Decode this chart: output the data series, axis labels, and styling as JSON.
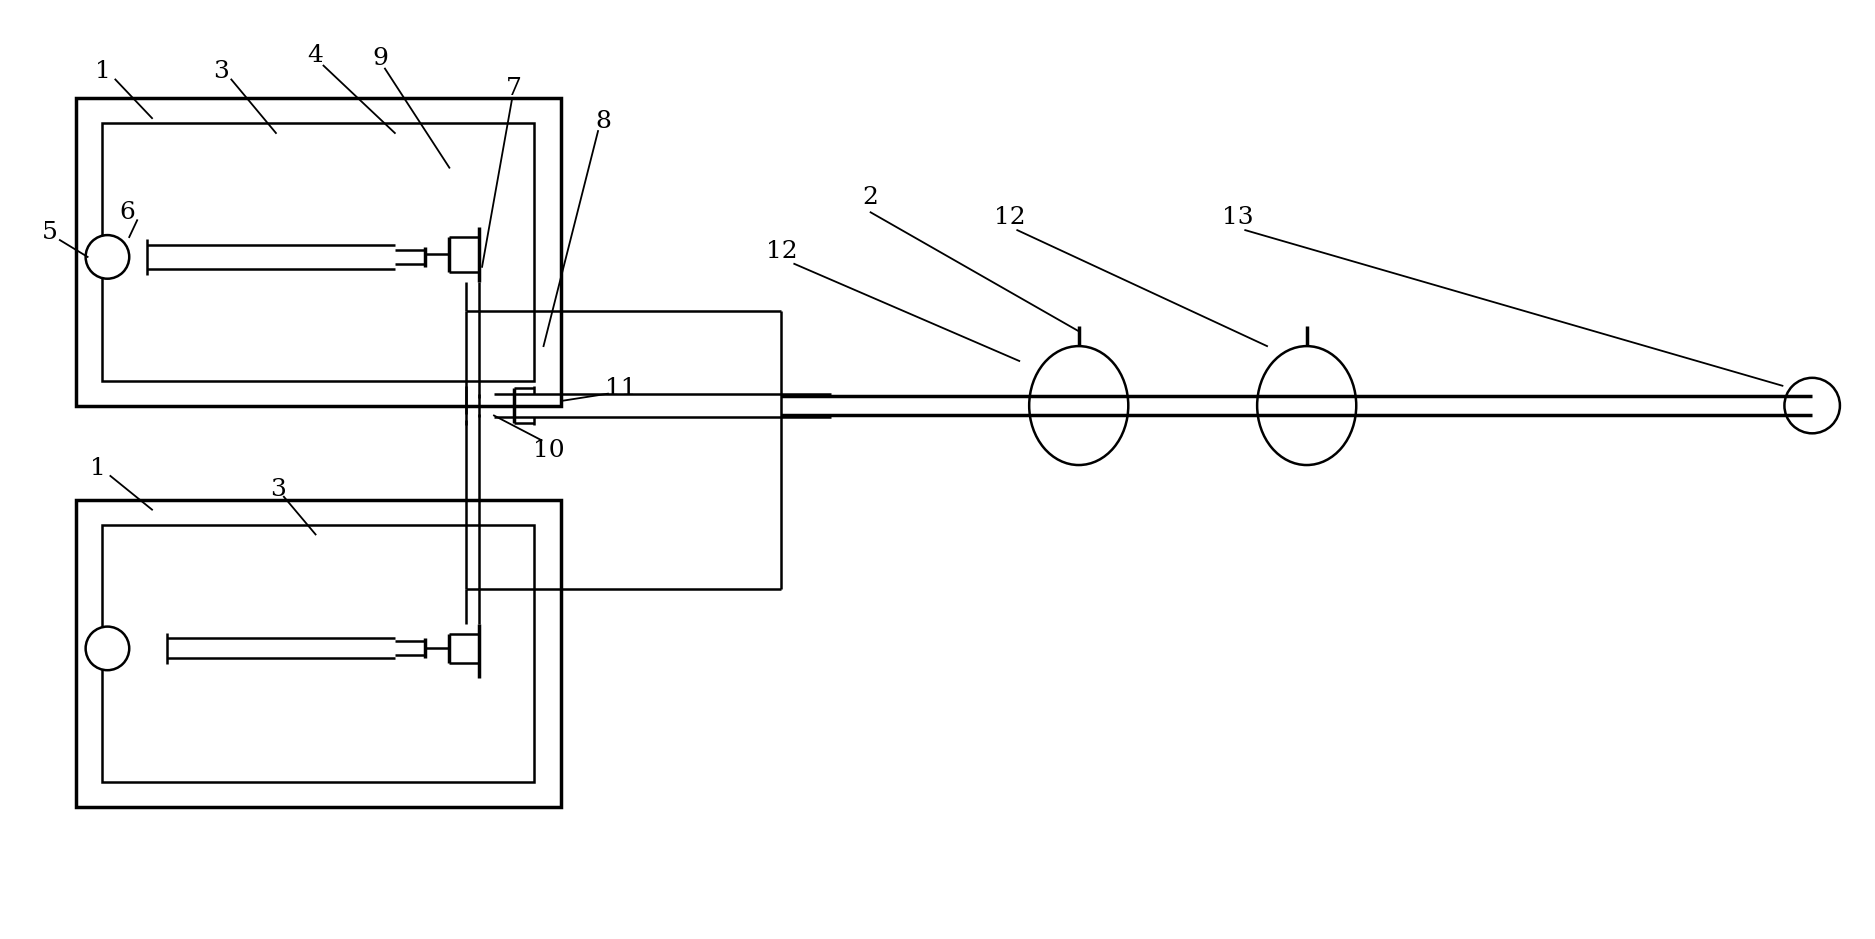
{
  "figsize": [
    18.75,
    9.39
  ],
  "dpi": 100,
  "bg_color": "#ffffff",
  "lw_outer": 2.5,
  "lw_inner": 1.8,
  "lw_line": 1.6,
  "lw_leader": 1.3,
  "label_fs": 18
}
